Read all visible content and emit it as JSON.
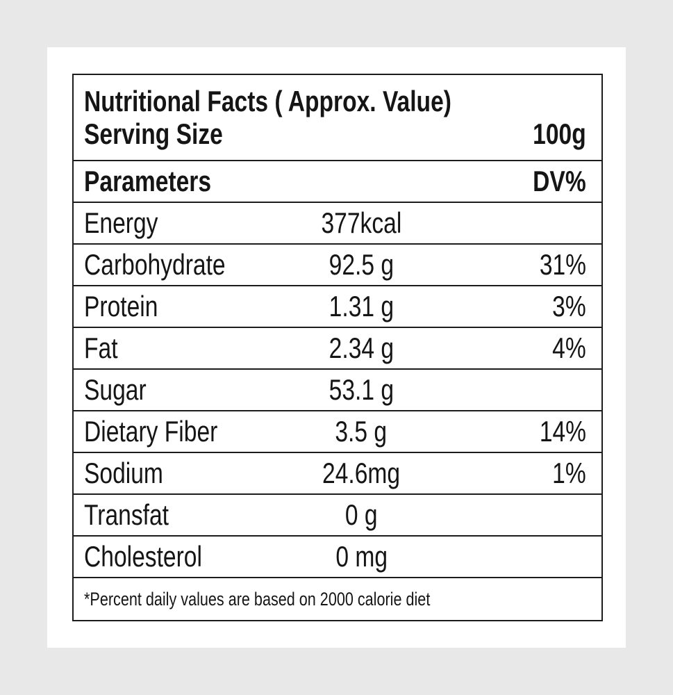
{
  "colors": {
    "page_background": "#e8e8e8",
    "card_background": "#ffffff",
    "border": "#1c1c1c",
    "text": "#151515"
  },
  "header": {
    "title": "Nutritional Facts ( Approx. Value)",
    "serving_label": "Serving Size",
    "serving_value": "100g"
  },
  "columns": {
    "parameter": "Parameters",
    "dv": "DV%"
  },
  "rows": [
    {
      "name": "Energy",
      "value": "377kcal",
      "dv": ""
    },
    {
      "name": "Carbohydrate",
      "value": "92.5 g",
      "dv": "31%"
    },
    {
      "name": "Protein",
      "value": "1.31 g",
      "dv": "3%"
    },
    {
      "name": "Fat",
      "value": "2.34 g",
      "dv": "4%"
    },
    {
      "name": "Sugar",
      "value": "53.1 g",
      "dv": ""
    },
    {
      "name": "Dietary Fiber",
      "value": "3.5 g",
      "dv": "14%"
    },
    {
      "name": "Sodium",
      "value": "24.6mg",
      "dv": "1%"
    },
    {
      "name": "Transfat",
      "value": "0 g",
      "dv": ""
    },
    {
      "name": "Cholesterol",
      "value": "0 mg",
      "dv": ""
    }
  ],
  "footnote": "*Percent daily values are based on 2000 calorie diet"
}
